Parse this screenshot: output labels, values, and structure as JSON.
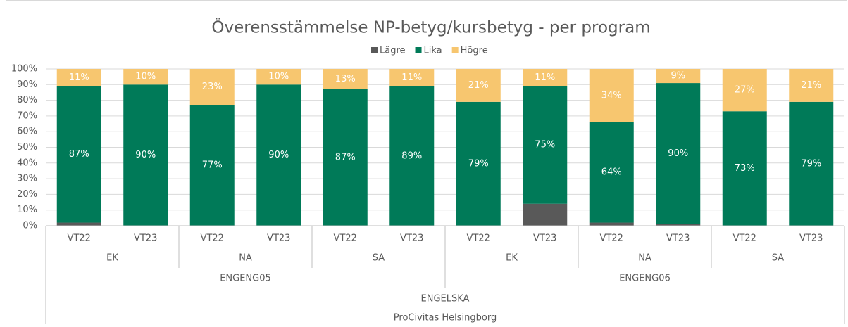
{
  "chart_data": {
    "type": "stacked_bar",
    "title": "Överensstämmelse NP-betyg/kursbetyg - per program",
    "categories": [
      "VT22",
      "VT23",
      "VT22",
      "VT23",
      "VT22",
      "VT23",
      "VT22",
      "VT23",
      "VT22",
      "VT23",
      "VT22",
      "VT23"
    ],
    "groups": [
      "EK",
      "NA",
      "SA",
      "EK",
      "NA",
      "SA"
    ],
    "courses": [
      "ENGENG05",
      "ENGENG06"
    ],
    "subject": "ENGELSKA",
    "school": "ProCivitas Helsingborg",
    "series": [
      {
        "name": "Lägre",
        "color": "#595959",
        "values": [
          2,
          0,
          0,
          0,
          0,
          0,
          0,
          14,
          2,
          1,
          0,
          0
        ]
      },
      {
        "name": "Lika",
        "color": "#007a58",
        "values": [
          87,
          90,
          77,
          90,
          87,
          89,
          79,
          75,
          64,
          90,
          73,
          79
        ],
        "value_labels": [
          "87%",
          "90%",
          "77%",
          "90%",
          "87%",
          "89%",
          "79%",
          "75%",
          "64%",
          "90%",
          "73%",
          "79%"
        ]
      },
      {
        "name": "Högre",
        "color": "#f7c66f",
        "values": [
          11,
          10,
          23,
          10,
          13,
          11,
          21,
          11,
          34,
          9,
          27,
          21
        ],
        "value_labels": [
          "11%",
          "10%",
          "23%",
          "10%",
          "13%",
          "11%",
          "21%",
          "11%",
          "34%",
          "9%",
          "27%",
          "21%"
        ]
      }
    ],
    "ylim": [
      0,
      100
    ],
    "yticks": [
      {
        "value": 0,
        "label": "0%"
      },
      {
        "value": 10,
        "label": "10%"
      },
      {
        "value": 20,
        "label": "20%"
      },
      {
        "value": 30,
        "label": "30%"
      },
      {
        "value": 40,
        "label": "40%"
      },
      {
        "value": 50,
        "label": "50%"
      },
      {
        "value": 60,
        "label": "60%"
      },
      {
        "value": 70,
        "label": "70%"
      },
      {
        "value": 80,
        "label": "80%"
      },
      {
        "value": 90,
        "label": "90%"
      },
      {
        "value": 100,
        "label": "100%"
      }
    ],
    "grid": true,
    "legend": "top"
  }
}
